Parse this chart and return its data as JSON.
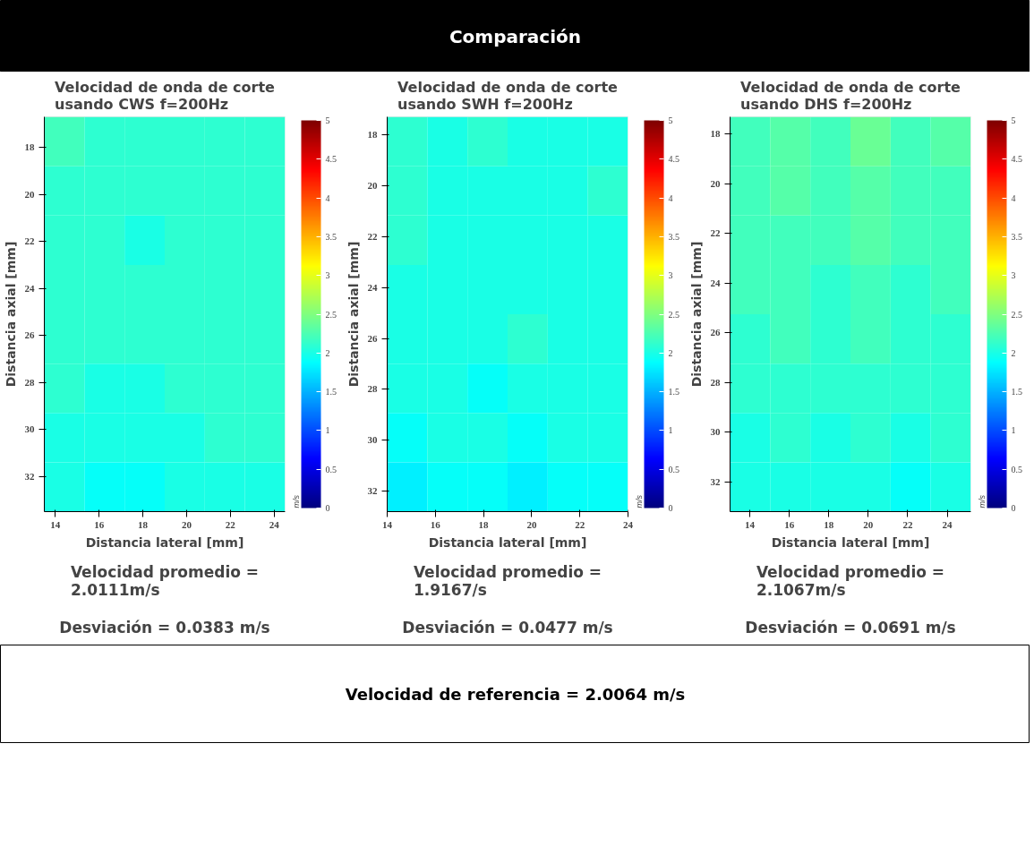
{
  "chart_data": [
    {
      "type": "other",
      "title": "Comparación"
    },
    {
      "type": "heatmap",
      "title": "Velocidad de onda de corte usando CWS f=200Hz",
      "xlabel": "Distancia lateral [mm]",
      "ylabel": "Distancia axial [mm]",
      "clabel": "m/s",
      "xlim": [
        13.5,
        24.5
      ],
      "xticks": [
        14,
        16,
        18,
        20,
        22,
        24
      ],
      "ylim": [
        33.5,
        16.7
      ],
      "yticks": [
        18,
        20,
        22,
        24,
        26,
        28,
        30,
        32
      ],
      "clim": [
        0,
        5
      ],
      "cticks": [
        0,
        0.5,
        1,
        1.5,
        2,
        2.5,
        3,
        3.5,
        4,
        4.5,
        5
      ],
      "cells": [
        [
          2.2,
          2.1,
          2.1,
          2.1,
          2.1,
          2.1
        ],
        [
          2.1,
          2.1,
          2.1,
          2.1,
          2.1,
          2.1
        ],
        [
          2.1,
          2.1,
          2.0,
          2.1,
          2.1,
          2.1
        ],
        [
          2.1,
          2.1,
          2.1,
          2.1,
          2.1,
          2.1
        ],
        [
          2.1,
          2.1,
          2.1,
          2.1,
          2.1,
          2.1
        ],
        [
          2.1,
          2.0,
          2.0,
          2.1,
          2.1,
          2.1
        ],
        [
          2.0,
          2.0,
          2.0,
          2.0,
          2.1,
          2.1
        ],
        [
          2.0,
          1.9,
          1.9,
          2.0,
          2.0,
          2.0
        ]
      ],
      "annotations": [
        "Velocidad promedio = 2.0111m/s",
        "Desviación = 0.0383 m/s"
      ]
    },
    {
      "type": "heatmap",
      "title": "Velocidad de onda de corte usando SWH f=200Hz",
      "xlabel": "Distancia lateral [mm]",
      "ylabel": "Distancia axial [mm]",
      "clabel": "m/s",
      "xlim": [
        14,
        24
      ],
      "xticks": [
        14,
        16,
        18,
        20,
        22,
        24
      ],
      "ylim": [
        32.8,
        17.3
      ],
      "yticks": [
        18,
        20,
        22,
        24,
        26,
        28,
        30,
        32
      ],
      "clim": [
        0,
        5
      ],
      "cticks": [
        0,
        0.5,
        1,
        1.5,
        2,
        2.5,
        3,
        3.5,
        4,
        4.5,
        5
      ],
      "cells": [
        [
          2.1,
          2.0,
          2.1,
          2.0,
          2.0,
          2.0
        ],
        [
          2.1,
          2.0,
          2.0,
          2.0,
          2.0,
          2.1
        ],
        [
          2.1,
          2.0,
          2.0,
          2.0,
          2.0,
          2.0
        ],
        [
          2.0,
          2.0,
          2.0,
          2.0,
          2.0,
          2.0
        ],
        [
          2.0,
          2.0,
          2.0,
          2.1,
          2.0,
          2.0
        ],
        [
          2.0,
          2.0,
          1.9,
          2.0,
          2.0,
          2.0
        ],
        [
          1.9,
          2.0,
          2.0,
          1.9,
          2.0,
          2.0
        ],
        [
          1.8,
          1.9,
          1.9,
          1.8,
          1.9,
          1.9
        ]
      ],
      "annotations": [
        "Velocidad promedio = 1.9167/s",
        "Desviación = 0.0477 m/s"
      ]
    },
    {
      "type": "heatmap",
      "title": "Velocidad de onda de corte usando DHS f=200Hz",
      "xlabel": "Distancia lateral [mm]",
      "ylabel": "Distancia axial [mm]",
      "clabel": "m/s",
      "xlim": [
        13,
        25.2
      ],
      "xticks": [
        14,
        16,
        18,
        20,
        22,
        24
      ],
      "ylim": [
        33.2,
        17.3
      ],
      "yticks": [
        18,
        20,
        22,
        24,
        26,
        28,
        30,
        32
      ],
      "clim": [
        0,
        5
      ],
      "cticks": [
        0,
        0.5,
        1,
        1.5,
        2,
        2.5,
        3,
        3.5,
        4,
        4.5,
        5
      ],
      "cells": [
        [
          2.2,
          2.3,
          2.2,
          2.4,
          2.2,
          2.3
        ],
        [
          2.2,
          2.3,
          2.2,
          2.3,
          2.2,
          2.2
        ],
        [
          2.2,
          2.2,
          2.2,
          2.3,
          2.2,
          2.2
        ],
        [
          2.2,
          2.2,
          2.1,
          2.2,
          2.1,
          2.2
        ],
        [
          2.1,
          2.2,
          2.1,
          2.2,
          2.1,
          2.1
        ],
        [
          2.1,
          2.1,
          2.1,
          2.1,
          2.1,
          2.1
        ],
        [
          2.0,
          2.1,
          2.0,
          2.1,
          2.0,
          2.1
        ],
        [
          2.0,
          2.0,
          2.0,
          2.0,
          1.9,
          2.0
        ]
      ],
      "annotations": [
        "Velocidad promedio = 2.1067m/s",
        "Desviación = 0.0691 m/s"
      ]
    },
    {
      "type": "other",
      "annotations": [
        "Velocidad de referencia = 2.0064 m/s"
      ]
    }
  ]
}
